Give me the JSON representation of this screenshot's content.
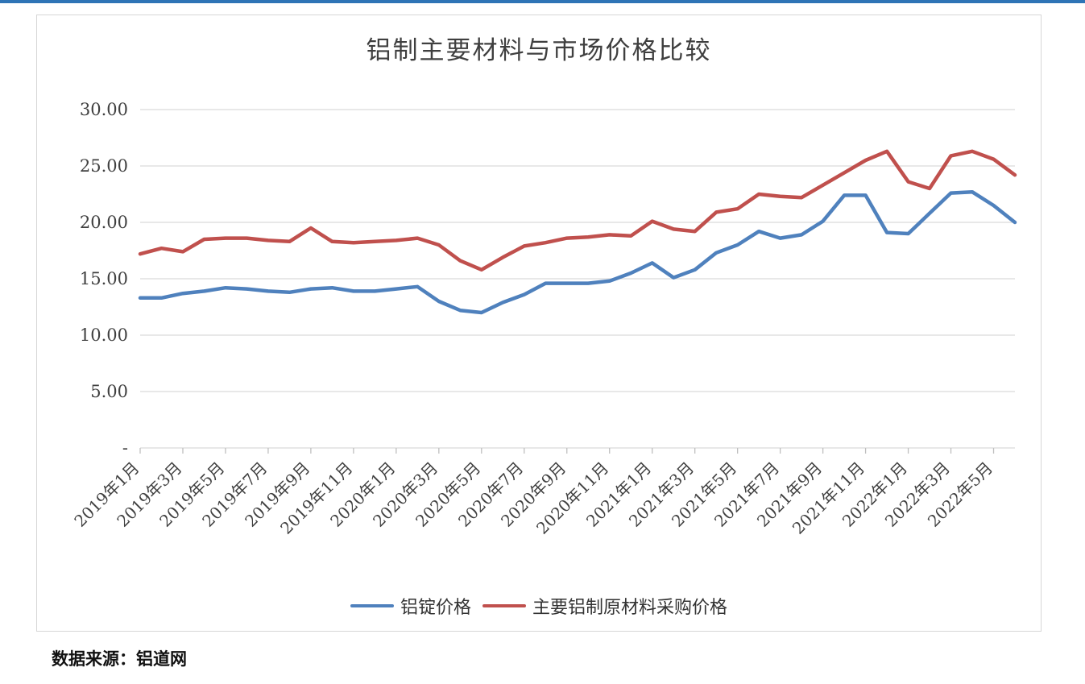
{
  "page": {
    "top_bar_color": "#2e74b6"
  },
  "source_note": "数据来源：铝道网",
  "chart_data": {
    "type": "line",
    "title": "铝制主要材料与市场价格比较",
    "xlabel": "",
    "ylabel": "",
    "ylim": [
      0,
      30
    ],
    "grid": "horizontal",
    "legend_position": "bottom",
    "y_ticks": [
      {
        "label": "30.00",
        "value": 30
      },
      {
        "label": "25.00",
        "value": 25
      },
      {
        "label": "20.00",
        "value": 20
      },
      {
        "label": "15.00",
        "value": 15
      },
      {
        "label": "10.00",
        "value": 10
      },
      {
        "label": "5.00",
        "value": 5
      },
      {
        "label": "-",
        "value": 0
      }
    ],
    "x": [
      "2019年1月",
      "2019年2月",
      "2019年3月",
      "2019年4月",
      "2019年5月",
      "2019年6月",
      "2019年7月",
      "2019年8月",
      "2019年9月",
      "2019年10月",
      "2019年11月",
      "2019年12月",
      "2020年1月",
      "2020年2月",
      "2020年3月",
      "2020年4月",
      "2020年5月",
      "2020年6月",
      "2020年7月",
      "2020年8月",
      "2020年9月",
      "2020年10月",
      "2020年11月",
      "2020年12月",
      "2021年1月",
      "2021年2月",
      "2021年3月",
      "2021年4月",
      "2021年5月",
      "2021年6月",
      "2021年7月",
      "2021年8月",
      "2021年9月",
      "2021年10月",
      "2021年11月",
      "2021年12月",
      "2022年1月",
      "2022年2月",
      "2022年3月",
      "2022年4月",
      "2022年5月",
      "2022年6月"
    ],
    "x_tick_labels": [
      "2019年1月",
      "2019年3月",
      "2019年5月",
      "2019年7月",
      "2019年9月",
      "2019年11月",
      "2020年1月",
      "2020年3月",
      "2020年5月",
      "2020年7月",
      "2020年9月",
      "2020年11月",
      "2021年1月",
      "2021年3月",
      "2021年5月",
      "2021年7月",
      "2021年9月",
      "2021年11月",
      "2022年1月",
      "2022年3月",
      "2022年5月"
    ],
    "x_tick_every": 2,
    "series": [
      {
        "name": "铝锭价格",
        "color": "#4f81bd",
        "values": [
          13.3,
          13.3,
          13.7,
          13.9,
          14.2,
          14.1,
          13.9,
          13.8,
          14.1,
          14.2,
          13.9,
          13.9,
          14.1,
          14.3,
          13.0,
          12.2,
          12.0,
          12.9,
          13.6,
          14.6,
          14.6,
          14.6,
          14.8,
          15.5,
          16.4,
          15.1,
          15.8,
          17.3,
          18.0,
          19.2,
          18.6,
          18.9,
          20.1,
          22.4,
          22.4,
          19.1,
          19.0,
          20.8,
          22.6,
          22.7,
          21.5,
          20.0
        ]
      },
      {
        "name": "主要铝制原材料采购价格",
        "color": "#c0504d",
        "values": [
          17.2,
          17.7,
          17.4,
          18.5,
          18.6,
          18.6,
          18.4,
          18.3,
          19.5,
          18.3,
          18.2,
          18.3,
          18.4,
          18.6,
          18.0,
          16.6,
          15.8,
          16.9,
          17.9,
          18.2,
          18.6,
          18.7,
          18.9,
          18.8,
          20.1,
          19.4,
          19.2,
          20.9,
          21.2,
          22.5,
          22.3,
          22.2,
          23.3,
          24.4,
          25.5,
          26.3,
          23.6,
          23.0,
          25.9,
          26.3,
          25.6,
          24.2
        ]
      }
    ]
  }
}
